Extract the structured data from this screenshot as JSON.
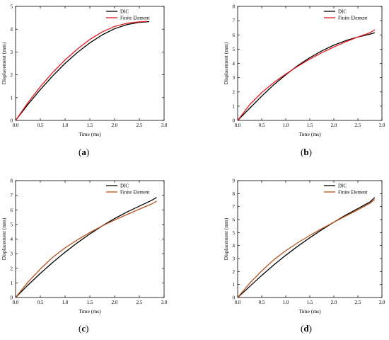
{
  "chart_data": [
    {
      "id": "a",
      "type": "line",
      "caption_letter": "a",
      "xlabel": "Time (ms)",
      "ylabel": "Displacement (mm)",
      "xlim": [
        0,
        3.0
      ],
      "ylim": [
        0,
        5
      ],
      "xticks": [
        "0.0",
        "0.5",
        "1.0",
        "1.5",
        "2.0",
        "2.5",
        "3.0"
      ],
      "yticks": [
        "0",
        "1",
        "2",
        "3",
        "4",
        "5"
      ],
      "legend": "top-right",
      "series": [
        {
          "name": "DIC",
          "color": "#000000",
          "x": [
            0,
            0.25,
            0.5,
            0.75,
            1.0,
            1.25,
            1.5,
            1.75,
            2.0,
            2.25,
            2.5,
            2.7
          ],
          "y": [
            0,
            0.7,
            1.35,
            1.95,
            2.5,
            2.98,
            3.4,
            3.75,
            4.02,
            4.2,
            4.3,
            4.33
          ]
        },
        {
          "name": "Finite Element",
          "color": "#e31a1c",
          "x": [
            0,
            0.25,
            0.5,
            0.75,
            1.0,
            1.25,
            1.5,
            1.75,
            2.0,
            2.25,
            2.5,
            2.65
          ],
          "y": [
            0,
            0.78,
            1.48,
            2.1,
            2.65,
            3.13,
            3.55,
            3.88,
            4.12,
            4.26,
            4.32,
            4.34
          ]
        }
      ]
    },
    {
      "id": "b",
      "type": "line",
      "caption_letter": "b",
      "xlabel": "Time (ms)",
      "ylabel": "Displacement (mm)",
      "xlim": [
        0,
        3.0
      ],
      "ylim": [
        0,
        8
      ],
      "xticks": [
        "0.0",
        "0.5",
        "1.0",
        "1.5",
        "2.0",
        "2.5",
        "3.0"
      ],
      "yticks": [
        "0",
        "1",
        "2",
        "3",
        "4",
        "5",
        "6",
        "7",
        "8"
      ],
      "legend": "top-right",
      "series": [
        {
          "name": "DIC",
          "color": "#000000",
          "x": [
            0,
            0.25,
            0.5,
            0.75,
            1.0,
            1.25,
            1.5,
            1.75,
            2.0,
            2.25,
            2.5,
            2.75,
            2.85
          ],
          "y": [
            0,
            0.85,
            1.7,
            2.5,
            3.2,
            3.85,
            4.4,
            4.88,
            5.28,
            5.6,
            5.85,
            6.05,
            6.15
          ]
        },
        {
          "name": "Finite Element",
          "color": "#e31a1c",
          "x": [
            0,
            0.25,
            0.5,
            0.75,
            1.0,
            1.25,
            1.5,
            1.75,
            2.0,
            2.25,
            2.5,
            2.75,
            2.85
          ],
          "y": [
            0,
            1.1,
            1.95,
            2.65,
            3.25,
            3.8,
            4.3,
            4.75,
            5.15,
            5.52,
            5.85,
            6.15,
            6.35
          ]
        }
      ]
    },
    {
      "id": "c",
      "type": "line",
      "caption_letter": "c",
      "xlabel": "Time (ms)",
      "ylabel": "Displacement (mm)",
      "xlim": [
        0,
        3.0
      ],
      "ylim": [
        0,
        8
      ],
      "xticks": [
        "0.0",
        "0.5",
        "1.0",
        "1.5",
        "2.0",
        "2.5",
        "3.0"
      ],
      "yticks": [
        "0",
        "1",
        "2",
        "3",
        "4",
        "5",
        "6",
        "7",
        "8"
      ],
      "legend": "top-right",
      "series": [
        {
          "name": "DIC",
          "color": "#000000",
          "x": [
            0,
            0.25,
            0.5,
            0.75,
            1.0,
            1.25,
            1.5,
            1.75,
            2.0,
            2.25,
            2.5,
            2.75,
            2.85
          ],
          "y": [
            0,
            0.85,
            1.65,
            2.4,
            3.1,
            3.75,
            4.35,
            4.9,
            5.4,
            5.85,
            6.25,
            6.65,
            6.85
          ]
        },
        {
          "name": "Finite Element",
          "color": "#b8511c",
          "x": [
            0,
            0.25,
            0.5,
            0.75,
            1.0,
            1.25,
            1.5,
            1.75,
            2.0,
            2.25,
            2.5,
            2.75,
            2.85
          ],
          "y": [
            0,
            1.05,
            1.95,
            2.75,
            3.4,
            3.95,
            4.45,
            4.9,
            5.3,
            5.68,
            6.05,
            6.4,
            6.6
          ]
        }
      ]
    },
    {
      "id": "d",
      "type": "line",
      "caption_letter": "d",
      "xlabel": "Time (ms)",
      "ylabel": "Displacement (mm)",
      "xlim": [
        0,
        3.0
      ],
      "ylim": [
        0,
        9
      ],
      "xticks": [
        "0.0",
        "0.5",
        "1.0",
        "1.5",
        "2.0",
        "2.5",
        "3.0"
      ],
      "yticks": [
        "0",
        "1",
        "2",
        "3",
        "4",
        "5",
        "6",
        "7",
        "8",
        "9"
      ],
      "legend": "top-right",
      "series": [
        {
          "name": "DIC",
          "color": "#000000",
          "x": [
            0,
            0.25,
            0.5,
            0.75,
            1.0,
            1.25,
            1.5,
            1.75,
            2.0,
            2.25,
            2.5,
            2.75,
            2.85
          ],
          "y": [
            0,
            0.85,
            1.7,
            2.5,
            3.25,
            3.95,
            4.6,
            5.22,
            5.8,
            6.35,
            6.85,
            7.35,
            7.7
          ]
        },
        {
          "name": "Finite Element",
          "color": "#b8511c",
          "x": [
            0,
            0.25,
            0.5,
            0.75,
            1.0,
            1.25,
            1.5,
            1.75,
            2.0,
            2.25,
            2.5,
            2.75,
            2.85
          ],
          "y": [
            0,
            1.1,
            2.05,
            2.9,
            3.6,
            4.22,
            4.78,
            5.3,
            5.8,
            6.28,
            6.75,
            7.25,
            7.55
          ]
        }
      ]
    }
  ]
}
